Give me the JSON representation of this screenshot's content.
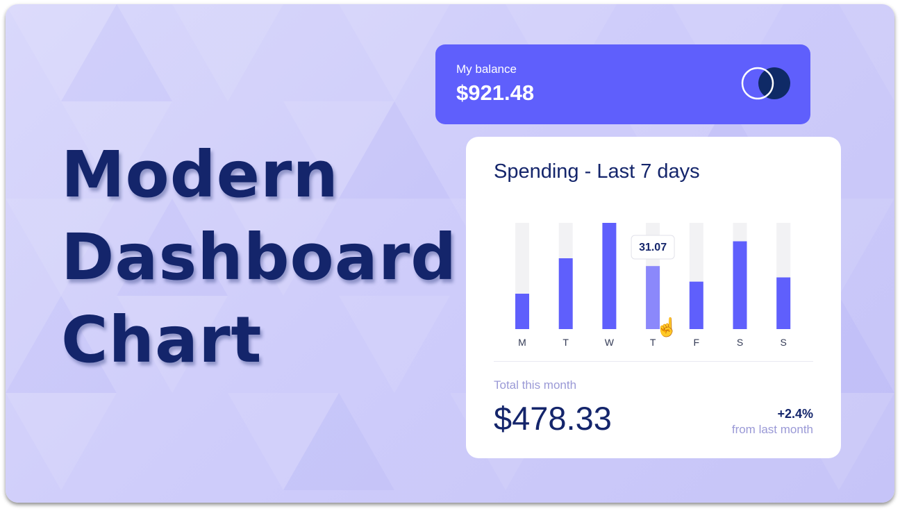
{
  "hero": {
    "lines": [
      "Modern",
      "Dashboard",
      "Chart"
    ]
  },
  "balance": {
    "label": "My balance",
    "value": "$921.48",
    "logo_icon": "card-brand-logo"
  },
  "spending": {
    "title": "Spending - Last 7 days",
    "tooltip": "31.07",
    "total_label": "Total this month",
    "total_value": "$478.33",
    "change_pct": "+2.4%",
    "change_note": "from last month"
  },
  "chart_data": {
    "type": "bar",
    "categories": [
      "M",
      "T",
      "W",
      "T",
      "F",
      "S",
      "S"
    ],
    "values": [
      17.45,
      34.91,
      52.36,
      31.07,
      23.39,
      43.28,
      25.48
    ],
    "ylim": [
      0,
      52.36
    ],
    "highlighted_index": 3,
    "grid": false,
    "colors": {
      "bar": "#5f5ffc",
      "bar_active": "#8b88fb",
      "track": "#f2f2f4"
    }
  },
  "colors": {
    "accent": "#5f5ffc",
    "navy": "#14256b",
    "muted": "#9a99d6"
  }
}
